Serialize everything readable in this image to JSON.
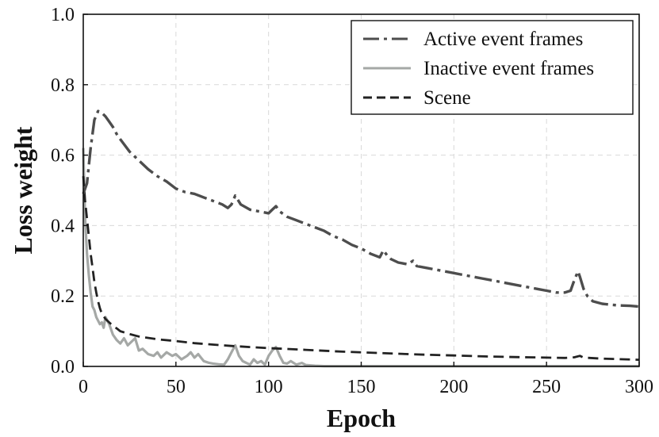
{
  "chart_data": {
    "type": "line",
    "xlabel": "Epoch",
    "ylabel": "Loss weight",
    "xlim": [
      0,
      300
    ],
    "ylim": [
      0,
      1.0
    ],
    "xticks": [
      0,
      50,
      100,
      150,
      200,
      250,
      300
    ],
    "xtick_labels": [
      "0",
      "50",
      "100",
      "150",
      "200",
      "250",
      "300"
    ],
    "yticks": [
      0.0,
      0.2,
      0.4,
      0.6,
      0.8,
      1.0
    ],
    "ytick_labels": [
      "0.0",
      "0.2",
      "0.4",
      "0.6",
      "0.8",
      "1.0"
    ],
    "grid": true,
    "legend_position": "top-right",
    "series": [
      {
        "name": "Active event frames",
        "color": "#4d4d4d",
        "style": "dashdot",
        "x": [
          0,
          2,
          4,
          6,
          8,
          10,
          12,
          14,
          16,
          18,
          20,
          25,
          30,
          35,
          40,
          45,
          50,
          55,
          60,
          65,
          70,
          75,
          78,
          80,
          82,
          85,
          90,
          95,
          100,
          102,
          104,
          106,
          110,
          115,
          120,
          125,
          130,
          135,
          140,
          145,
          150,
          155,
          160,
          162,
          164,
          166,
          170,
          175,
          178,
          180,
          185,
          190,
          195,
          200,
          205,
          210,
          215,
          220,
          225,
          230,
          235,
          240,
          245,
          250,
          255,
          260,
          263,
          265,
          267,
          268,
          270,
          272,
          275,
          280,
          285,
          290,
          295,
          300
        ],
        "values": [
          0.49,
          0.52,
          0.62,
          0.7,
          0.725,
          0.72,
          0.71,
          0.695,
          0.68,
          0.66,
          0.645,
          0.61,
          0.585,
          0.56,
          0.54,
          0.525,
          0.505,
          0.495,
          0.49,
          0.48,
          0.47,
          0.46,
          0.45,
          0.46,
          0.485,
          0.46,
          0.445,
          0.44,
          0.435,
          0.445,
          0.455,
          0.44,
          0.425,
          0.415,
          0.405,
          0.395,
          0.385,
          0.37,
          0.36,
          0.345,
          0.335,
          0.32,
          0.31,
          0.33,
          0.315,
          0.305,
          0.295,
          0.29,
          0.3,
          0.285,
          0.28,
          0.275,
          0.27,
          0.265,
          0.26,
          0.255,
          0.25,
          0.245,
          0.24,
          0.235,
          0.23,
          0.225,
          0.22,
          0.215,
          0.21,
          0.21,
          0.215,
          0.245,
          0.27,
          0.255,
          0.22,
          0.2,
          0.185,
          0.178,
          0.175,
          0.173,
          0.172,
          0.17
        ]
      },
      {
        "name": "Inactive event frames",
        "color": "#a5a8a6",
        "style": "solid",
        "x": [
          0,
          1,
          2,
          3,
          4,
          5,
          6,
          7,
          8,
          9,
          10,
          11,
          12,
          14,
          16,
          18,
          20,
          22,
          24,
          26,
          28,
          30,
          32,
          35,
          38,
          40,
          42,
          45,
          48,
          50,
          53,
          56,
          58,
          60,
          62,
          65,
          68,
          70,
          73,
          76,
          78,
          80,
          82,
          84,
          86,
          88,
          90,
          92,
          94,
          96,
          98,
          100,
          102,
          104,
          106,
          108,
          110,
          112,
          115,
          118,
          120,
          125,
          130,
          150,
          200,
          250,
          300
        ],
        "values": [
          0.62,
          0.42,
          0.32,
          0.26,
          0.21,
          0.17,
          0.16,
          0.14,
          0.13,
          0.12,
          0.125,
          0.11,
          0.14,
          0.12,
          0.09,
          0.075,
          0.065,
          0.08,
          0.06,
          0.07,
          0.08,
          0.045,
          0.05,
          0.035,
          0.03,
          0.04,
          0.025,
          0.04,
          0.03,
          0.035,
          0.02,
          0.03,
          0.04,
          0.025,
          0.035,
          0.015,
          0.01,
          0.008,
          0.006,
          0.005,
          0.02,
          0.04,
          0.06,
          0.03,
          0.015,
          0.01,
          0.005,
          0.02,
          0.01,
          0.015,
          0.005,
          0.03,
          0.045,
          0.055,
          0.03,
          0.01,
          0.008,
          0.015,
          0.005,
          0.01,
          0.004,
          0.002,
          0.001,
          0.001,
          0.001,
          0.001,
          0.001
        ]
      },
      {
        "name": "Scene",
        "color": "#222222",
        "style": "dashed",
        "x": [
          0,
          1,
          2,
          3,
          4,
          5,
          6,
          7,
          8,
          9,
          10,
          12,
          14,
          16,
          18,
          20,
          25,
          30,
          40,
          50,
          60,
          70,
          80,
          90,
          100,
          120,
          140,
          160,
          180,
          200,
          220,
          240,
          260,
          265,
          268,
          270,
          280,
          300
        ],
        "values": [
          0.54,
          0.47,
          0.42,
          0.37,
          0.32,
          0.28,
          0.24,
          0.21,
          0.185,
          0.165,
          0.15,
          0.135,
          0.125,
          0.115,
          0.108,
          0.1,
          0.092,
          0.085,
          0.077,
          0.072,
          0.066,
          0.062,
          0.058,
          0.055,
          0.052,
          0.047,
          0.042,
          0.038,
          0.034,
          0.031,
          0.028,
          0.026,
          0.024,
          0.026,
          0.03,
          0.025,
          0.022,
          0.019
        ]
      }
    ]
  }
}
